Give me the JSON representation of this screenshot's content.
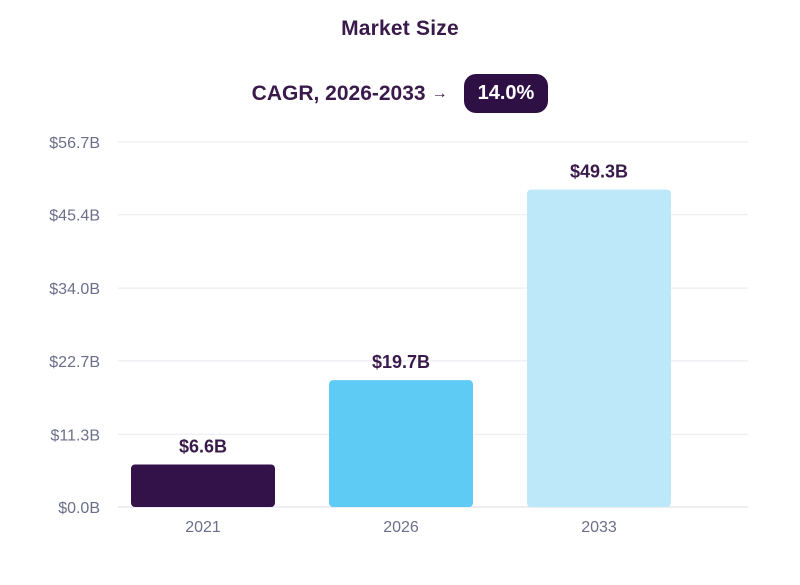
{
  "header": {
    "title": "Market Size",
    "cagr_label": "CAGR, 2026-2033",
    "cagr_arrow": "→",
    "cagr_value": "14.0%"
  },
  "colors": {
    "text_dark": "#3a1a4a",
    "badge_bg": "#2e1045",
    "grid": "#e9eaf0",
    "tick": "#6b6f8a"
  },
  "chart_data": {
    "type": "bar",
    "title": "Market Size",
    "categories": [
      "2021",
      "2026",
      "2033"
    ],
    "values": [
      6.6,
      19.7,
      49.3
    ],
    "data_labels": [
      "$6.6B",
      "$19.7B",
      "$49.3B"
    ],
    "bar_colors": [
      "#33124a",
      "#5ecbf5",
      "#bde8f9"
    ],
    "y_ticks": [
      0.0,
      11.3,
      22.7,
      34.0,
      45.4,
      56.7
    ],
    "y_tick_labels": [
      "$0.0B",
      "$11.3B",
      "$22.7B",
      "$34.0B",
      "$45.4B",
      "$56.7B"
    ],
    "ylim": [
      0,
      56.7
    ],
    "grid": true,
    "legend": "none"
  }
}
